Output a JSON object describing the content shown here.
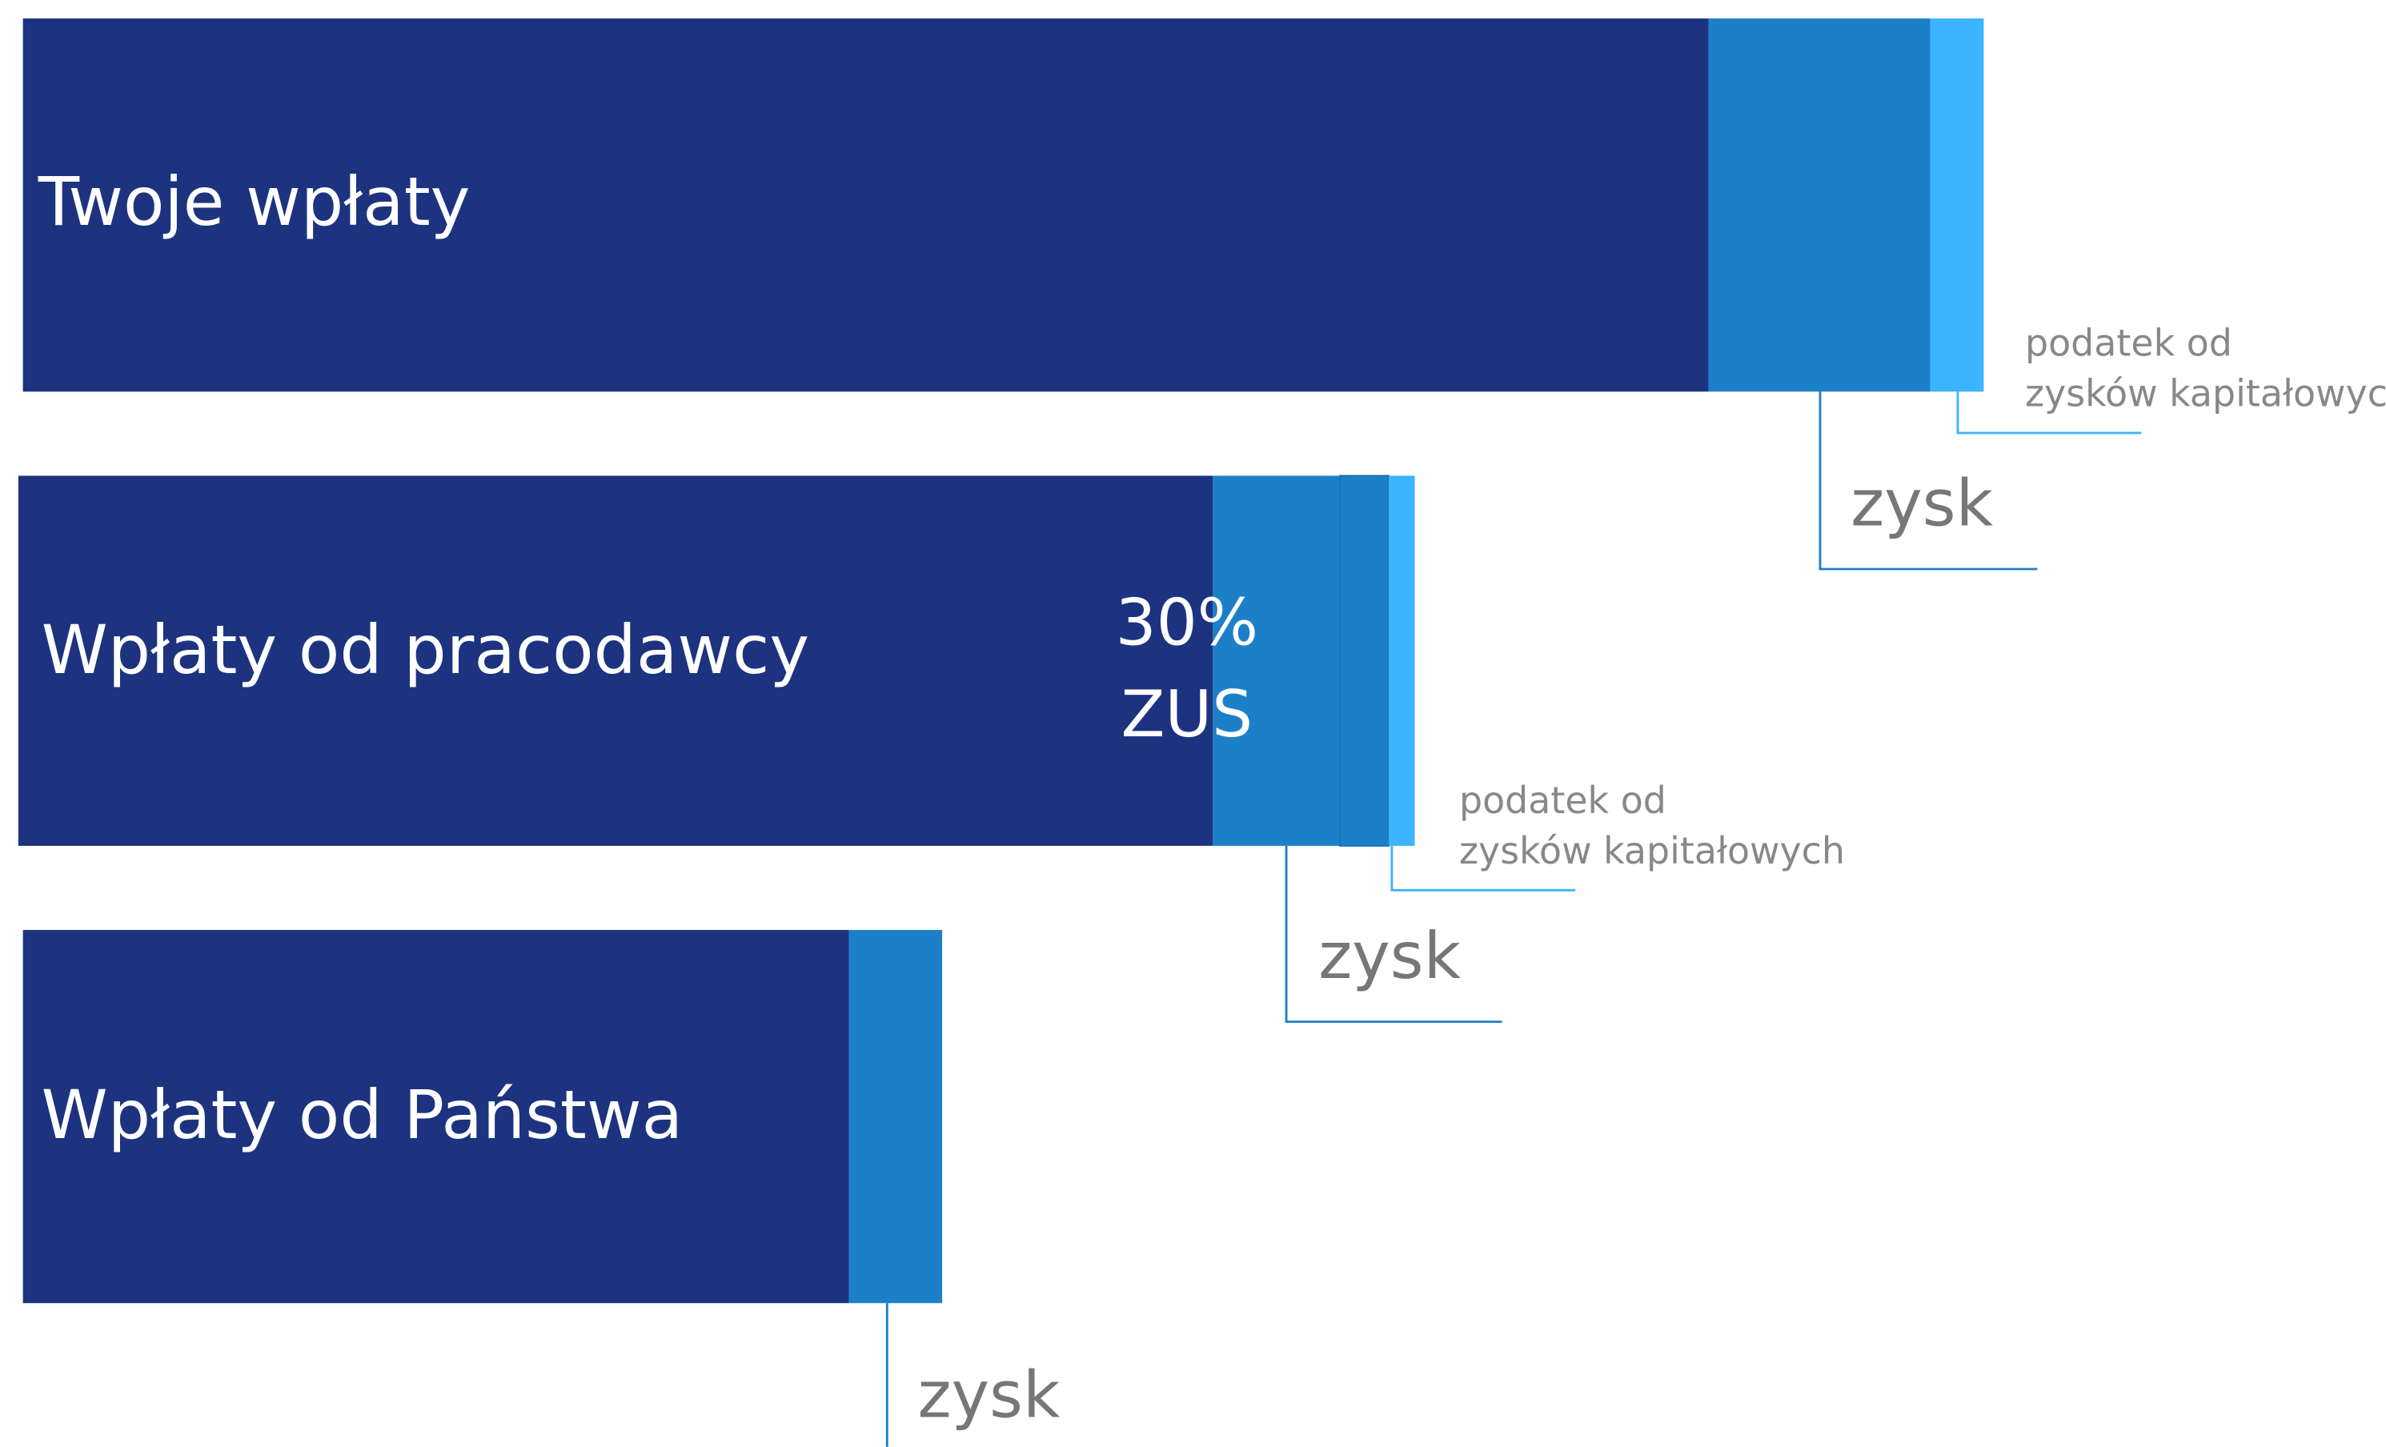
{
  "bars": [
    {
      "label": "Twoje wpłaty",
      "gain_label": "zysk",
      "tax_label": [
        "podatek od",
        "zysków kapitałowych"
      ]
    },
    {
      "label": "Wpłaty od pracodawcy",
      "note": [
        "30%",
        "ZUS"
      ],
      "gain_label": "zysk",
      "tax_label": [
        "podatek od",
        "zysków kapitałowych"
      ]
    },
    {
      "label": "Wpłaty od Państwa",
      "gain_label": "zysk"
    }
  ]
}
